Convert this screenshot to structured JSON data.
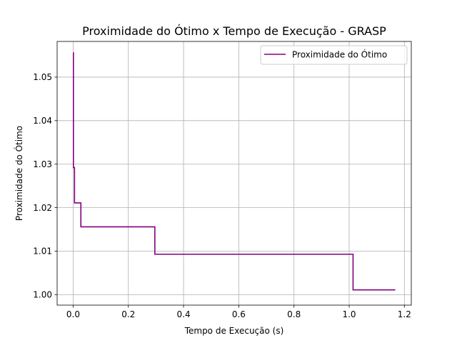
{
  "chart_data": {
    "type": "line",
    "title": "Proximidade do Ótimo x Tempo de Execução - GRASP",
    "xlabel": "Tempo de Execução (s)",
    "ylabel": "Proximidade do Ótimo",
    "xlim": [
      -0.058,
      1.225
    ],
    "ylim": [
      0.9976,
      1.0582
    ],
    "xticks": [
      0.0,
      0.2,
      0.4,
      0.6,
      0.8,
      1.0,
      1.2
    ],
    "xtick_labels": [
      "0.0",
      "0.2",
      "0.4",
      "0.6",
      "0.8",
      "1.0",
      "1.2"
    ],
    "yticks": [
      1.0,
      1.01,
      1.02,
      1.03,
      1.04,
      1.05
    ],
    "ytick_labels": [
      "1.00",
      "1.01",
      "1.02",
      "1.03",
      "1.04",
      "1.05"
    ],
    "grid": true,
    "legend_position": "upper right",
    "series": [
      {
        "name": "Proximidade do Ótimo",
        "color": "#800080",
        "step": "post",
        "x": [
          0.0,
          0.001,
          0.005,
          0.028,
          0.296,
          1.014,
          1.167
        ],
        "y": [
          1.0556,
          1.0292,
          1.0211,
          1.0156,
          1.0093,
          1.0011,
          1.0011
        ]
      }
    ]
  }
}
